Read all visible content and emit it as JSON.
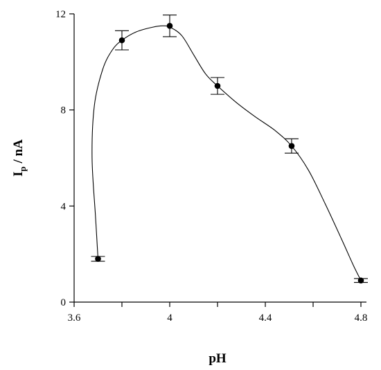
{
  "chart_data": {
    "type": "scatter",
    "xlabel": "pH",
    "ylabel": {
      "main": "I",
      "sub": "p",
      "rest": " / nA"
    },
    "xlim": [
      3.6,
      4.8
    ],
    "ylim": [
      0,
      12
    ],
    "x_ticks": [
      {
        "value": 3.6,
        "label": "3.6"
      },
      {
        "value": 3.8,
        "label": ""
      },
      {
        "value": 4.0,
        "label": "4"
      },
      {
        "value": 4.2,
        "label": ""
      },
      {
        "value": 4.4,
        "label": "4.4"
      },
      {
        "value": 4.6,
        "label": ""
      },
      {
        "value": 4.8,
        "label": "4.8"
      }
    ],
    "y_ticks": [
      {
        "value": 0,
        "label": "0"
      },
      {
        "value": 4,
        "label": "4"
      },
      {
        "value": 8,
        "label": "8"
      },
      {
        "value": 12,
        "label": "12"
      }
    ],
    "grid": false,
    "legend": false,
    "series": [
      {
        "x": [
          3.7,
          3.8,
          4.0,
          4.2,
          4.51,
          4.8
        ],
        "y": [
          1.8,
          10.9,
          11.5,
          9.0,
          6.5,
          0.9
        ],
        "error": [
          0.1,
          0.4,
          0.45,
          0.35,
          0.3,
          0.08
        ]
      }
    ],
    "fit_curve": [
      [
        3.7,
        1.8
      ],
      [
        3.69,
        3.5
      ],
      [
        3.675,
        6.0
      ],
      [
        3.685,
        8.2
      ],
      [
        3.72,
        9.7
      ],
      [
        3.76,
        10.5
      ],
      [
        3.8,
        10.9
      ],
      [
        3.86,
        11.25
      ],
      [
        3.93,
        11.45
      ],
      [
        3.97,
        11.5
      ],
      [
        4.0,
        11.45
      ],
      [
        4.05,
        11.1
      ],
      [
        4.1,
        10.3
      ],
      [
        4.15,
        9.5
      ],
      [
        4.2,
        9.0
      ],
      [
        4.28,
        8.3
      ],
      [
        4.36,
        7.7
      ],
      [
        4.44,
        7.15
      ],
      [
        4.51,
        6.5
      ],
      [
        4.58,
        5.5
      ],
      [
        4.65,
        4.1
      ],
      [
        4.72,
        2.6
      ],
      [
        4.77,
        1.5
      ],
      [
        4.8,
        0.9
      ]
    ],
    "colors": {
      "axis": "#000000",
      "marker": "#000000",
      "curve": "#000000"
    }
  }
}
